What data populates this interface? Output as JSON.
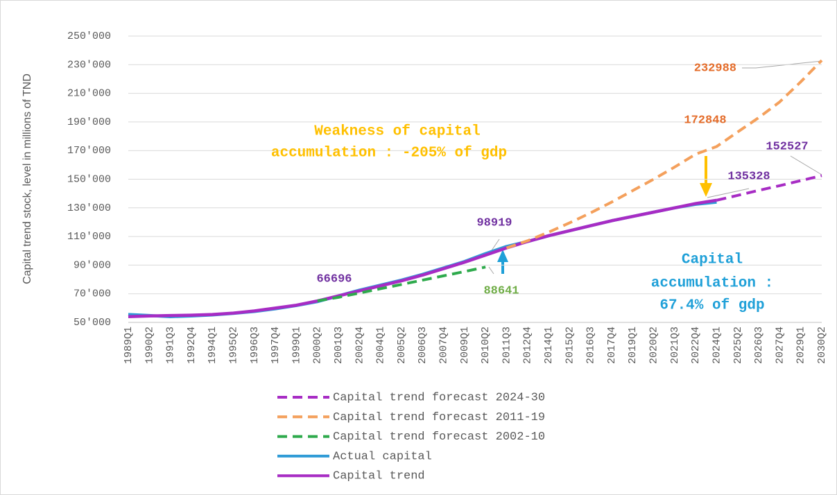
{
  "chart_data": {
    "type": "line",
    "y_label": "Capital trend stock, level in millions of TND",
    "categories": [
      "1989Q1",
      "1990Q2",
      "1991Q3",
      "1992Q4",
      "1994Q1",
      "1995Q2",
      "1996Q3",
      "1997Q4",
      "1999Q1",
      "2000Q2",
      "2001Q3",
      "2002Q4",
      "2004Q1",
      "2005Q2",
      "2006Q3",
      "2007Q4",
      "2009Q1",
      "2010Q2",
      "2011Q3",
      "2012Q4",
      "2014Q1",
      "2015Q2",
      "2016Q3",
      "2017Q4",
      "2019Q1",
      "2020Q2",
      "2021Q3",
      "2022Q4",
      "2024Q1",
      "2025Q2",
      "2026Q3",
      "2027Q4",
      "2029Q1",
      "2030Q2"
    ],
    "ylim": [
      50000,
      250000
    ],
    "yticks": [
      {
        "value": 50000,
        "label": "50'000"
      },
      {
        "value": 70000,
        "label": "70'000"
      },
      {
        "value": 90000,
        "label": "90'000"
      },
      {
        "value": 110000,
        "label": "110'000"
      },
      {
        "value": 130000,
        "label": "130'000"
      },
      {
        "value": 150000,
        "label": "150'000"
      },
      {
        "value": 170000,
        "label": "170'000"
      },
      {
        "value": 190000,
        "label": "190'000"
      },
      {
        "value": 210000,
        "label": "210'000"
      },
      {
        "value": 230000,
        "label": "230'000"
      },
      {
        "value": 250000,
        "label": "250'000"
      }
    ],
    "grid": true,
    "series": [
      {
        "name": "Capital trend forecast 2024-30",
        "color": "#a72cc4",
        "dashed": true,
        "values": [
          null,
          null,
          null,
          null,
          null,
          null,
          null,
          null,
          null,
          null,
          null,
          null,
          null,
          null,
          null,
          null,
          null,
          null,
          null,
          null,
          null,
          null,
          null,
          null,
          null,
          null,
          null,
          null,
          135328,
          138700,
          142200,
          145500,
          149000,
          152527
        ]
      },
      {
        "name": "Capital trend forecast 2011-19",
        "color": "#f4a05c",
        "dashed": true,
        "values": [
          null,
          null,
          null,
          null,
          null,
          null,
          null,
          null,
          null,
          null,
          null,
          null,
          null,
          null,
          null,
          null,
          null,
          null,
          102000,
          107000,
          113000,
          119500,
          126500,
          134000,
          142000,
          150000,
          158500,
          167500,
          172848,
          183000,
          193000,
          204000,
          218000,
          232988
        ]
      },
      {
        "name": "Capital trend forecast 2002-10",
        "color": "#2eaa4c",
        "dashed": true,
        "values": [
          null,
          null,
          null,
          null,
          null,
          null,
          null,
          null,
          null,
          65000,
          67500,
          70500,
          73500,
          76500,
          79500,
          82500,
          85500,
          88641,
          null,
          null,
          null,
          null,
          null,
          null,
          null,
          null,
          null,
          null,
          null,
          null,
          null,
          null,
          null,
          null
        ]
      },
      {
        "name": "Actual capital",
        "color": "#2f9bd6",
        "dashed": false,
        "values": [
          55500,
          54800,
          54000,
          54500,
          55200,
          56300,
          57600,
          59500,
          61800,
          64500,
          68500,
          72500,
          76000,
          79500,
          83500,
          88000,
          92500,
          98000,
          103000,
          106500,
          110500,
          114000,
          117500,
          121000,
          124000,
          127000,
          130000,
          132500,
          134000,
          null,
          null,
          null,
          null,
          null
        ]
      },
      {
        "name": "Capital trend",
        "color": "#a72cc4",
        "dashed": false,
        "values": [
          54000,
          54500,
          54800,
          55000,
          55500,
          56500,
          58000,
          60000,
          62000,
          65000,
          68500,
          72000,
          75500,
          79000,
          83000,
          87500,
          92000,
          97000,
          102000,
          106500,
          110500,
          114000,
          117500,
          121000,
          124000,
          127000,
          130000,
          133000,
          135328,
          null,
          null,
          null,
          null,
          null
        ]
      }
    ],
    "annotations": [
      {
        "text": "Weakness of capital",
        "color": "#ffc000"
      },
      {
        "text": "accumulation : -205% of gdp",
        "color": "#ffc000"
      },
      {
        "text": "Capital",
        "color": "#1fa0d8"
      },
      {
        "text": "accumulation :",
        "color": "#1fa0d8"
      },
      {
        "text": "67.4% of gdp",
        "color": "#1fa0d8"
      },
      {
        "text": "66696",
        "color": "#7030a0"
      },
      {
        "text": "98919",
        "color": "#7030a0"
      },
      {
        "text": "88641",
        "color": "#70ad47"
      },
      {
        "text": "172848",
        "color": "#e46c2a"
      },
      {
        "text": "232988",
        "color": "#e46c2a"
      },
      {
        "text": "152527",
        "color": "#7030a0"
      },
      {
        "text": "135328",
        "color": "#7030a0"
      }
    ]
  }
}
